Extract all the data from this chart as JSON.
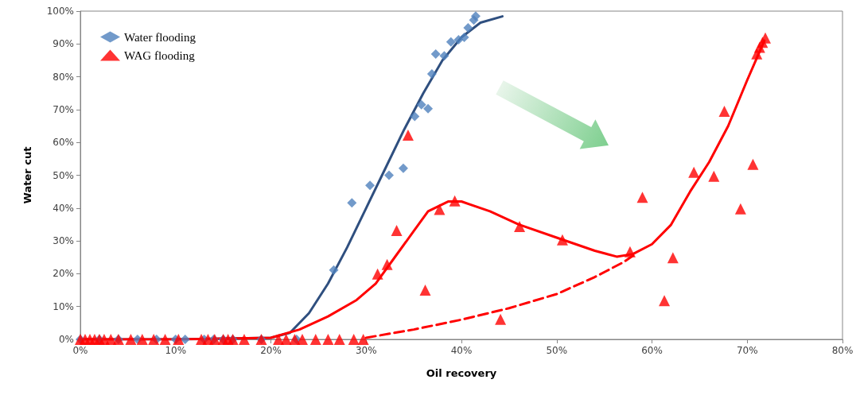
{
  "chart_data": {
    "type": "scatter",
    "xlabel": "Oil recovery",
    "ylabel": "Water cut",
    "xlim": [
      0,
      80
    ],
    "ylim": [
      0,
      100
    ],
    "xticks": [
      {
        "value": 0,
        "label": "0%"
      },
      {
        "value": 10,
        "label": "10%"
      },
      {
        "value": 20,
        "label": "20%"
      },
      {
        "value": 30,
        "label": "30%"
      },
      {
        "value": 40,
        "label": "40%"
      },
      {
        "value": 50,
        "label": "50%"
      },
      {
        "value": 60,
        "label": "60%"
      },
      {
        "value": 70,
        "label": "70%"
      },
      {
        "value": 80,
        "label": "80%"
      }
    ],
    "yticks": [
      {
        "value": 0,
        "label": "0%"
      },
      {
        "value": 10,
        "label": "10%"
      },
      {
        "value": 20,
        "label": "20%"
      },
      {
        "value": 30,
        "label": "30%"
      },
      {
        "value": 40,
        "label": "40%"
      },
      {
        "value": 50,
        "label": "50%"
      },
      {
        "value": 60,
        "label": "60%"
      },
      {
        "value": 70,
        "label": "70%"
      },
      {
        "value": 80,
        "label": "80%"
      },
      {
        "value": 90,
        "label": "90%"
      },
      {
        "value": 100,
        "label": "100%"
      }
    ],
    "grid": false,
    "legend": "top left",
    "series": [
      {
        "type": "line",
        "color": "#2f4f7f",
        "marker": "none",
        "line_style": "solid",
        "x": [
          0,
          10,
          20,
          22,
          24,
          26,
          28,
          30,
          32,
          34,
          36,
          38,
          40,
          42,
          44.3
        ],
        "values": [
          0,
          0,
          0.5,
          2,
          8,
          17,
          28,
          40,
          52,
          64,
          75,
          85,
          92,
          96.5,
          98.4
        ]
      },
      {
        "type": "line",
        "color": "#ff0000",
        "marker": "none",
        "line_style": "solid",
        "x": [
          0,
          10,
          20,
          23,
          26,
          29,
          31,
          33,
          35,
          36.5,
          38.6,
          40,
          43,
          46,
          50,
          54,
          56.3,
          58,
          60,
          62,
          64,
          66,
          68,
          70,
          71.8
        ],
        "values": [
          0,
          0,
          0.5,
          3,
          7,
          12,
          17,
          25,
          33,
          39,
          42,
          42,
          39,
          35,
          31,
          27,
          25.2,
          26,
          29,
          34.9,
          45,
          54,
          65,
          79,
          91
        ]
      },
      {
        "type": "line",
        "color": "#ff0000",
        "marker": "none",
        "line_style": "dashed",
        "x": [
          30,
          35,
          40,
          45,
          50,
          54,
          57,
          58
        ],
        "values": [
          0.5,
          3,
          6,
          9.5,
          13.8,
          19,
          23.5,
          25.5
        ]
      },
      {
        "name": "Water flooding",
        "color": "#4f81bd",
        "marker": "diamond",
        "x": [
          0,
          2,
          4,
          6,
          8,
          10,
          11,
          13,
          14,
          15,
          16,
          19,
          22.7,
          26.6,
          28.5,
          30.4,
          32.4,
          33.9,
          35.1,
          35.8,
          36.5,
          36.9,
          37.3,
          38.2,
          38.9,
          39.7,
          40.3,
          40.7,
          41.3,
          41.5
        ],
        "values": [
          0,
          0,
          0,
          0,
          0,
          0,
          0,
          0,
          0,
          0,
          0,
          0,
          0,
          21.1,
          41.6,
          46.9,
          50,
          52.1,
          67.9,
          71.5,
          70.3,
          80.9,
          86.9,
          86.4,
          90.6,
          91.3,
          92,
          94.9,
          97.3,
          98.5
        ]
      },
      {
        "name": "WAG flooding",
        "color": "#ff0000",
        "marker": "triangle",
        "x": [
          0,
          0.5,
          1,
          1.5,
          2,
          2.5,
          3.2,
          4,
          5.3,
          6.5,
          7.7,
          8.9,
          10.3,
          12.7,
          13.4,
          14.1,
          15,
          15.5,
          16,
          17.2,
          19,
          20.8,
          21.6,
          22.5,
          23.3,
          24.7,
          26,
          27.2,
          28.7,
          29.7,
          31.2,
          32.2,
          33.2,
          34.4,
          36.2,
          37.7,
          39.3,
          44.1,
          46.1,
          50.6,
          57.7,
          59,
          61.3,
          62.2,
          64.4,
          66.5,
          67.6,
          69.3,
          70.6,
          71,
          71.3,
          71.6,
          71.9
        ],
        "values": [
          0,
          0,
          0,
          0,
          0,
          0,
          0,
          0,
          0,
          0,
          0,
          0,
          0,
          0,
          0,
          0,
          0,
          0,
          0,
          0,
          0,
          0,
          0,
          0,
          0,
          0,
          0,
          0,
          0,
          0,
          19.9,
          22.8,
          33.2,
          62.2,
          15,
          39.6,
          42.2,
          6.1,
          34.4,
          30.3,
          26.7,
          43.3,
          11.8,
          24.9,
          50.9,
          49.7,
          69.5,
          39.8,
          53.3,
          87,
          89,
          90.5,
          91.8
        ]
      }
    ]
  }
}
